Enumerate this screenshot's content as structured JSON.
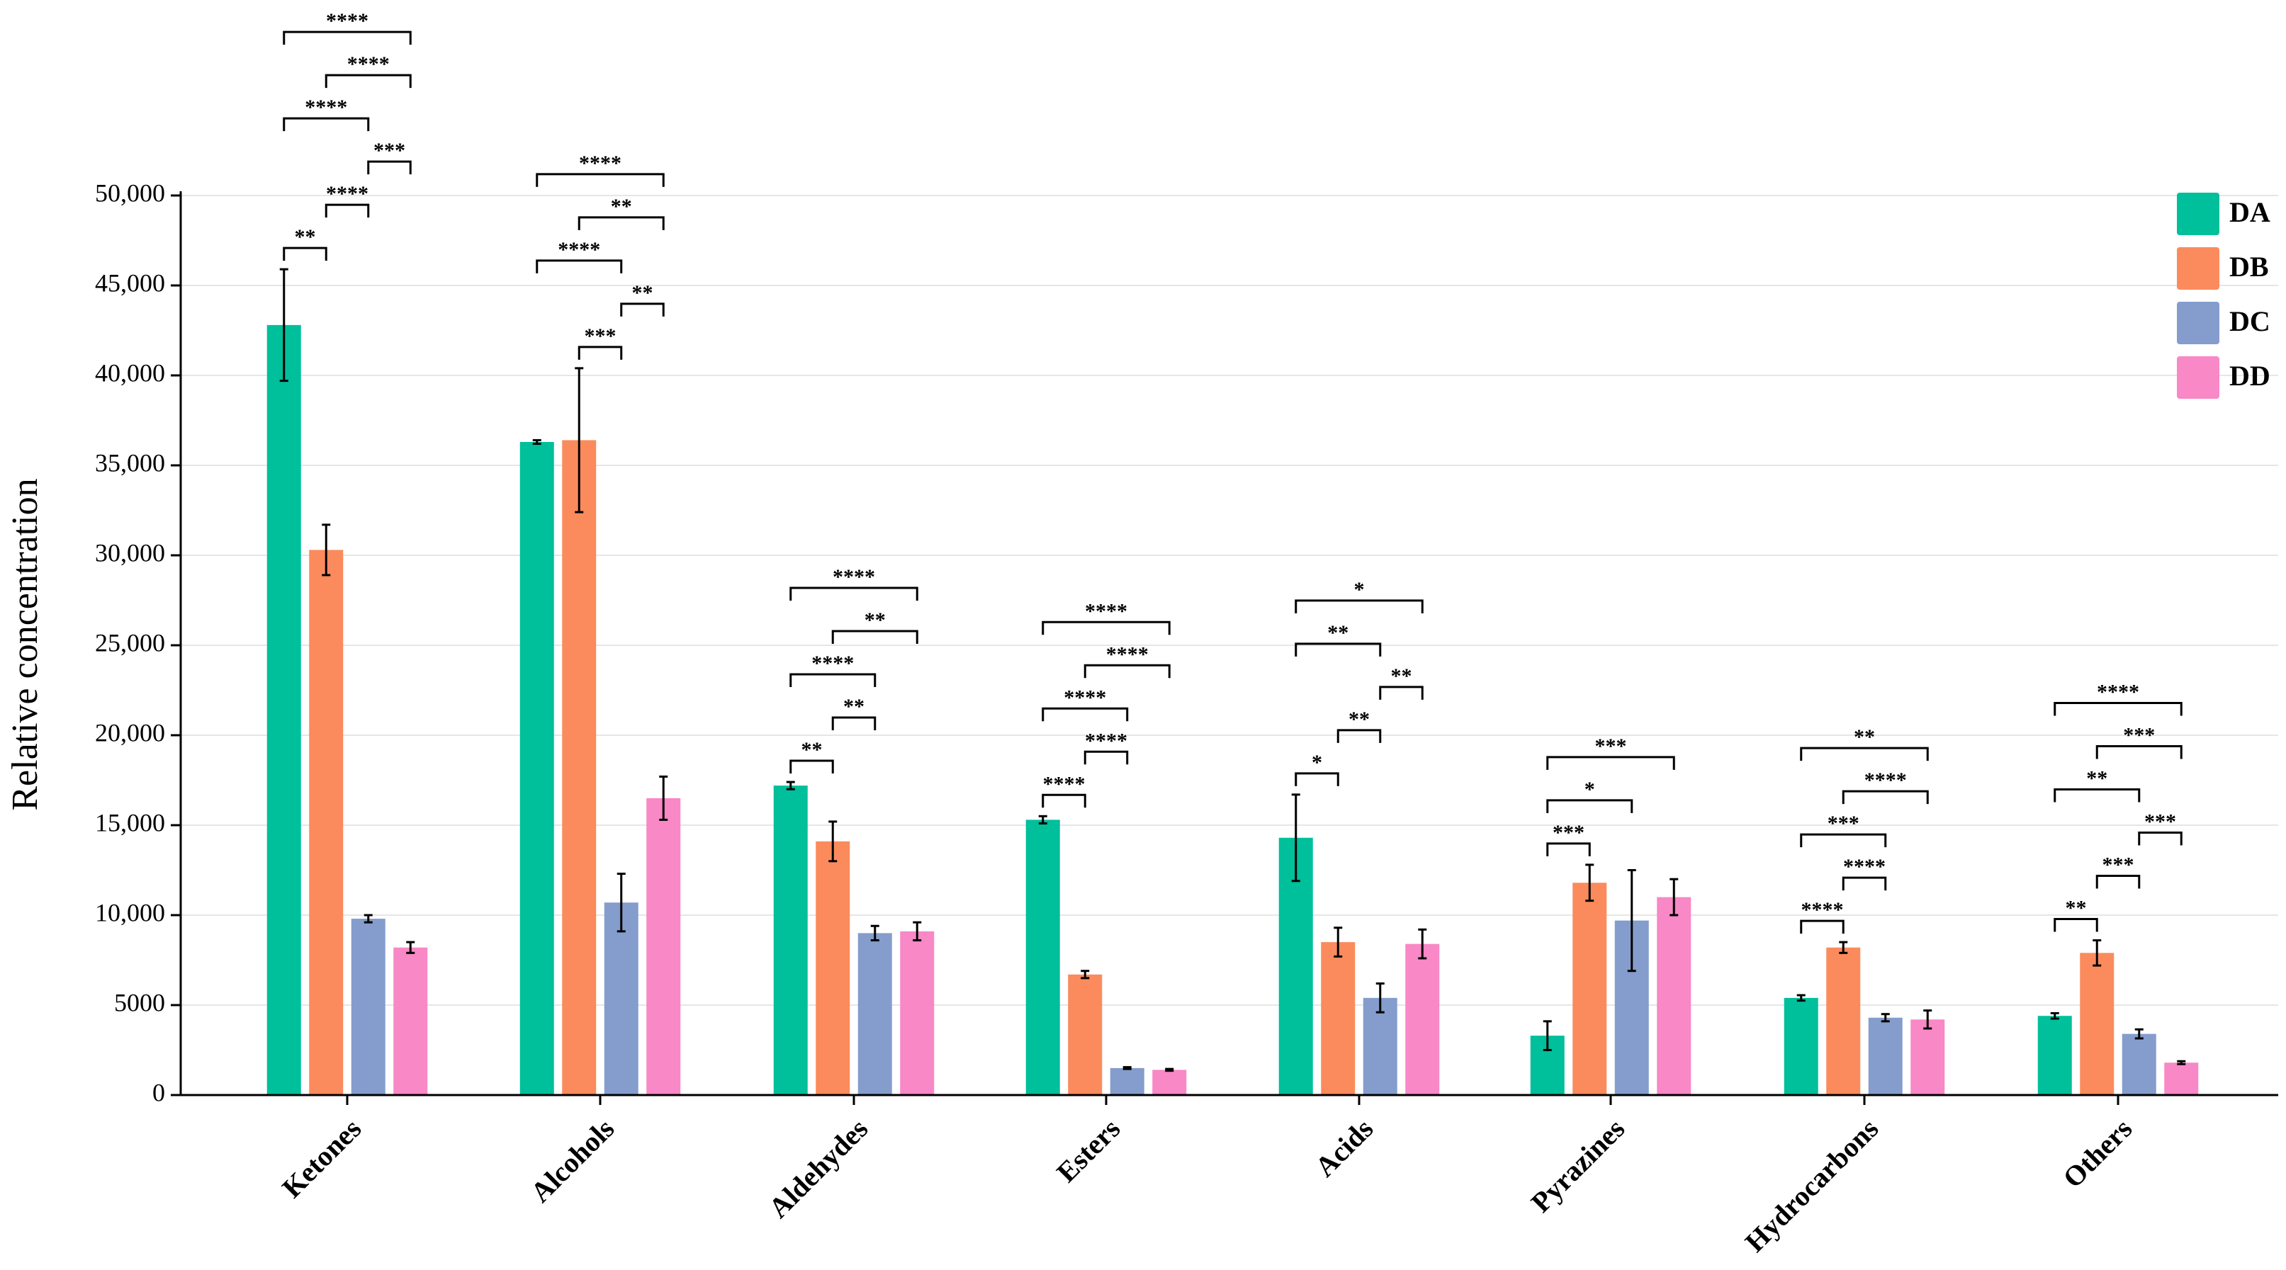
{
  "chart_data": {
    "type": "bar",
    "title": "",
    "xlabel": "",
    "ylabel": "Relative concentration",
    "ylim": [
      0,
      50000
    ],
    "yticks": [
      0,
      5000,
      10000,
      15000,
      20000,
      25000,
      30000,
      35000,
      40000,
      45000,
      50000
    ],
    "ytick_labels": [
      "0",
      "5000",
      "10,000",
      "15,000",
      "20,000",
      "25,000",
      "30,000",
      "35,000",
      "40,000",
      "45,000",
      "50,000"
    ],
    "categories": [
      "Ketones",
      "Alcohols",
      "Aldehydes",
      "Esters",
      "Acids",
      "Pyrazines",
      "Hydrocarbons",
      "Others"
    ],
    "series": [
      {
        "name": "DA",
        "color": "#00bf9b",
        "values": [
          42800,
          36300,
          17200,
          15300,
          14300,
          3300,
          5400,
          4400
        ],
        "errors": [
          3100,
          100,
          200,
          200,
          2400,
          800,
          150,
          150
        ]
      },
      {
        "name": "DB",
        "color": "#fb8b5c",
        "values": [
          30300,
          36400,
          14100,
          6700,
          8500,
          11800,
          8200,
          7900
        ],
        "errors": [
          1400,
          4000,
          1100,
          200,
          800,
          1000,
          300,
          700
        ]
      },
      {
        "name": "DC",
        "color": "#849dcc",
        "values": [
          9800,
          10700,
          9000,
          1500,
          5400,
          9700,
          4300,
          3400
        ],
        "errors": [
          200,
          1600,
          400,
          50,
          800,
          2800,
          200,
          250
        ]
      },
      {
        "name": "DD",
        "color": "#f888c6",
        "values": [
          8200,
          16500,
          9100,
          1400,
          8400,
          11000,
          4200,
          1800
        ],
        "errors": [
          300,
          1200,
          500,
          50,
          800,
          1000,
          500,
          80
        ]
      }
    ],
    "legend": {
      "position": "top-right",
      "entries": [
        "DA",
        "DB",
        "DC",
        "DD"
      ]
    },
    "grid": true,
    "significance": [
      {
        "category": "Ketones",
        "brackets": [
          {
            "from": "DA",
            "to": "DB",
            "label": "**"
          },
          {
            "from": "DA",
            "to": "DC",
            "label": "****"
          },
          {
            "from": "DA",
            "to": "DD",
            "label": "****"
          },
          {
            "from": "DB",
            "to": "DC",
            "label": "****"
          },
          {
            "from": "DB",
            "to": "DD",
            "label": "****"
          },
          {
            "from": "DC",
            "to": "DD",
            "label": "***"
          }
        ]
      },
      {
        "category": "Alcohols",
        "brackets": [
          {
            "from": "DA",
            "to": "DC",
            "label": "****"
          },
          {
            "from": "DA",
            "to": "DD",
            "label": "****"
          },
          {
            "from": "DB",
            "to": "DC",
            "label": "***"
          },
          {
            "from": "DB",
            "to": "DD",
            "label": "**"
          },
          {
            "from": "DC",
            "to": "DD",
            "label": "**"
          }
        ]
      },
      {
        "category": "Aldehydes",
        "brackets": [
          {
            "from": "DA",
            "to": "DB",
            "label": "**"
          },
          {
            "from": "DA",
            "to": "DC",
            "label": "****"
          },
          {
            "from": "DA",
            "to": "DD",
            "label": "****"
          },
          {
            "from": "DB",
            "to": "DC",
            "label": "**"
          },
          {
            "from": "DB",
            "to": "DD",
            "label": "**"
          }
        ]
      },
      {
        "category": "Esters",
        "brackets": [
          {
            "from": "DA",
            "to": "DB",
            "label": "****"
          },
          {
            "from": "DA",
            "to": "DC",
            "label": "****"
          },
          {
            "from": "DA",
            "to": "DD",
            "label": "****"
          },
          {
            "from": "DB",
            "to": "DC",
            "label": "****"
          },
          {
            "from": "DB",
            "to": "DD",
            "label": "****"
          }
        ]
      },
      {
        "category": "Acids",
        "brackets": [
          {
            "from": "DA",
            "to": "DB",
            "label": "*"
          },
          {
            "from": "DA",
            "to": "DC",
            "label": "**"
          },
          {
            "from": "DA",
            "to": "DD",
            "label": "*"
          },
          {
            "from": "DB",
            "to": "DC",
            "label": "**"
          },
          {
            "from": "DC",
            "to": "DD",
            "label": "**"
          }
        ]
      },
      {
        "category": "Pyrazines",
        "brackets": [
          {
            "from": "DA",
            "to": "DB",
            "label": "***"
          },
          {
            "from": "DA",
            "to": "DC",
            "label": "*"
          },
          {
            "from": "DA",
            "to": "DD",
            "label": "***"
          }
        ]
      },
      {
        "category": "Hydrocarbons",
        "brackets": [
          {
            "from": "DA",
            "to": "DB",
            "label": "****"
          },
          {
            "from": "DA",
            "to": "DC",
            "label": "***"
          },
          {
            "from": "DA",
            "to": "DD",
            "label": "**"
          },
          {
            "from": "DB",
            "to": "DC",
            "label": "****"
          },
          {
            "from": "DB",
            "to": "DD",
            "label": "****"
          }
        ]
      },
      {
        "category": "Others",
        "brackets": [
          {
            "from": "DA",
            "to": "DB",
            "label": "**"
          },
          {
            "from": "DA",
            "to": "DC",
            "label": "**"
          },
          {
            "from": "DA",
            "to": "DD",
            "label": "****"
          },
          {
            "from": "DB",
            "to": "DC",
            "label": "***"
          },
          {
            "from": "DB",
            "to": "DD",
            "label": "***"
          },
          {
            "from": "DC",
            "to": "DD",
            "label": "***"
          }
        ]
      }
    ]
  }
}
